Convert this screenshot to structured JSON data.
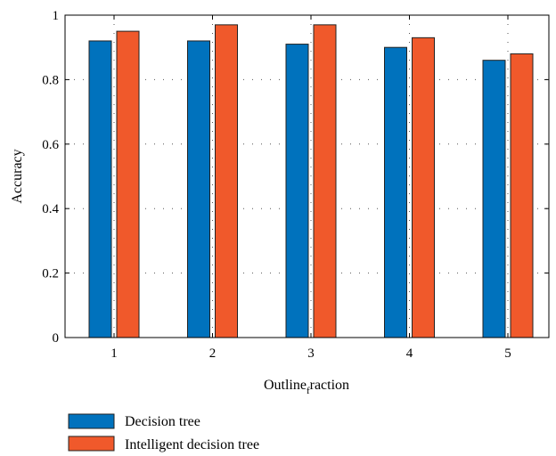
{
  "chart_data": {
    "type": "bar",
    "categories": [
      "1",
      "2",
      "3",
      "4",
      "5"
    ],
    "series": [
      {
        "name": "Decision tree",
        "values": [
          0.92,
          0.92,
          0.91,
          0.9,
          0.86
        ],
        "color": "#0072bd"
      },
      {
        "name": "Intelligent decision tree",
        "values": [
          0.95,
          0.97,
          0.97,
          0.93,
          0.88
        ],
        "color": "#f0592b"
      }
    ],
    "xlabel": "Outline",
    "xlabel_sub": "f",
    "xlabel_tail": "raction",
    "ylabel": "Accuracy",
    "ylim": [
      0,
      1
    ],
    "yticks": [
      "0",
      "0.2",
      "0.4",
      "0.6",
      "0.8",
      "1"
    ],
    "grid": "dotted",
    "legend_position": "bottom-left"
  }
}
